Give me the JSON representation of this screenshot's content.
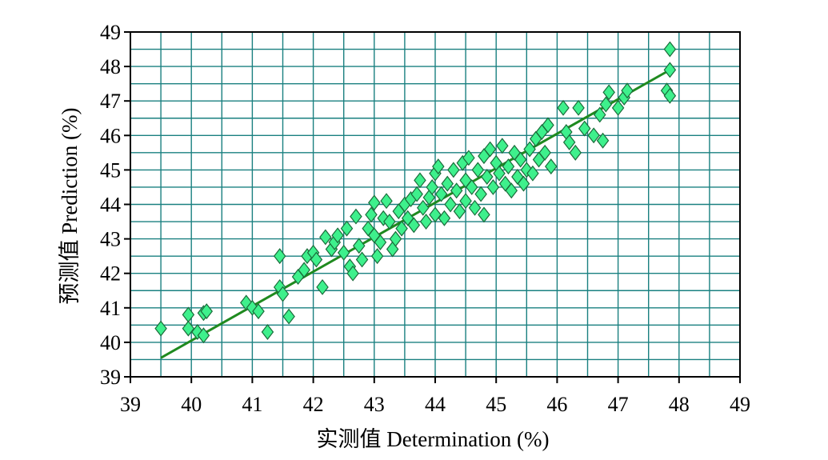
{
  "chart_data": {
    "type": "scatter",
    "xlabel": "实测值 Determination (%)",
    "ylabel": "预测值 Prediction (%)",
    "xlim": [
      39,
      49
    ],
    "ylim": [
      39,
      49
    ],
    "x_ticks": [
      "39",
      "40",
      "41",
      "42",
      "43",
      "44",
      "45",
      "46",
      "47",
      "48",
      "49"
    ],
    "y_ticks": [
      "39",
      "40",
      "41",
      "42",
      "43",
      "44",
      "45",
      "46",
      "47",
      "48",
      "49"
    ],
    "grid": true,
    "marker": "diamond",
    "colors": {
      "point_fill": "#3ef08c",
      "point_stroke": "#1a6b3a",
      "line": "#1f8a1f",
      "grid": "#1a8080",
      "axis": "#000000"
    },
    "fit_line": {
      "x": [
        39.5,
        47.9
      ],
      "y": [
        39.55,
        47.95
      ]
    },
    "points": [
      [
        39.5,
        40.4
      ],
      [
        39.95,
        40.8
      ],
      [
        39.95,
        40.4
      ],
      [
        40.1,
        40.3
      ],
      [
        40.2,
        40.85
      ],
      [
        40.2,
        40.2
      ],
      [
        40.25,
        40.9
      ],
      [
        40.9,
        41.15
      ],
      [
        41.0,
        41.0
      ],
      [
        41.1,
        40.9
      ],
      [
        41.25,
        40.3
      ],
      [
        41.45,
        42.5
      ],
      [
        41.45,
        41.6
      ],
      [
        41.5,
        41.4
      ],
      [
        41.6,
        40.75
      ],
      [
        41.75,
        41.9
      ],
      [
        41.85,
        42.1
      ],
      [
        41.9,
        42.5
      ],
      [
        42.0,
        42.6
      ],
      [
        42.05,
        42.4
      ],
      [
        42.15,
        41.6
      ],
      [
        42.2,
        43.05
      ],
      [
        42.3,
        42.7
      ],
      [
        42.35,
        42.9
      ],
      [
        42.4,
        43.1
      ],
      [
        42.5,
        42.6
      ],
      [
        42.55,
        43.3
      ],
      [
        42.6,
        42.2
      ],
      [
        42.65,
        42.0
      ],
      [
        42.7,
        43.65
      ],
      [
        42.75,
        42.8
      ],
      [
        42.8,
        42.4
      ],
      [
        42.9,
        43.3
      ],
      [
        42.95,
        43.7
      ],
      [
        43.0,
        44.05
      ],
      [
        43.0,
        43.1
      ],
      [
        43.05,
        42.5
      ],
      [
        43.1,
        42.9
      ],
      [
        43.15,
        43.6
      ],
      [
        43.2,
        44.1
      ],
      [
        43.25,
        43.5
      ],
      [
        43.3,
        42.7
      ],
      [
        43.35,
        43.0
      ],
      [
        43.4,
        43.8
      ],
      [
        43.45,
        43.3
      ],
      [
        43.5,
        44.0
      ],
      [
        43.55,
        43.6
      ],
      [
        43.6,
        44.15
      ],
      [
        43.65,
        43.4
      ],
      [
        43.7,
        44.3
      ],
      [
        43.75,
        44.7
      ],
      [
        43.8,
        43.9
      ],
      [
        43.85,
        43.5
      ],
      [
        43.9,
        44.2
      ],
      [
        43.95,
        44.5
      ],
      [
        44.0,
        43.7
      ],
      [
        44.0,
        44.9
      ],
      [
        44.05,
        45.1
      ],
      [
        44.1,
        44.3
      ],
      [
        44.15,
        43.6
      ],
      [
        44.2,
        44.6
      ],
      [
        44.25,
        44.0
      ],
      [
        44.3,
        45.0
      ],
      [
        44.35,
        44.4
      ],
      [
        44.4,
        43.8
      ],
      [
        44.45,
        45.2
      ],
      [
        44.5,
        44.7
      ],
      [
        44.5,
        44.1
      ],
      [
        44.55,
        45.35
      ],
      [
        44.6,
        44.5
      ],
      [
        44.65,
        43.9
      ],
      [
        44.7,
        45.0
      ],
      [
        44.75,
        44.3
      ],
      [
        44.8,
        43.7
      ],
      [
        44.8,
        45.4
      ],
      [
        44.85,
        44.8
      ],
      [
        44.9,
        45.6
      ],
      [
        44.95,
        44.5
      ],
      [
        45.0,
        45.2
      ],
      [
        45.05,
        44.9
      ],
      [
        45.1,
        45.7
      ],
      [
        45.15,
        44.6
      ],
      [
        45.2,
        45.1
      ],
      [
        45.25,
        44.4
      ],
      [
        45.3,
        45.5
      ],
      [
        45.35,
        44.8
      ],
      [
        45.4,
        45.3
      ],
      [
        45.45,
        44.6
      ],
      [
        45.5,
        45.0
      ],
      [
        45.55,
        45.6
      ],
      [
        45.6,
        44.9
      ],
      [
        45.65,
        45.9
      ],
      [
        45.7,
        45.3
      ],
      [
        45.75,
        46.1
      ],
      [
        45.8,
        45.5
      ],
      [
        45.85,
        46.3
      ],
      [
        45.9,
        45.1
      ],
      [
        46.1,
        46.8
      ],
      [
        46.15,
        46.1
      ],
      [
        46.2,
        45.8
      ],
      [
        46.3,
        45.5
      ],
      [
        46.35,
        46.8
      ],
      [
        46.45,
        46.2
      ],
      [
        46.6,
        46.0
      ],
      [
        46.7,
        46.6
      ],
      [
        46.75,
        45.85
      ],
      [
        46.8,
        46.9
      ],
      [
        46.85,
        47.25
      ],
      [
        47.0,
        46.8
      ],
      [
        47.1,
        47.1
      ],
      [
        47.15,
        47.3
      ],
      [
        47.8,
        47.3
      ],
      [
        47.85,
        47.15
      ],
      [
        47.85,
        48.5
      ],
      [
        47.85,
        47.9
      ]
    ]
  }
}
